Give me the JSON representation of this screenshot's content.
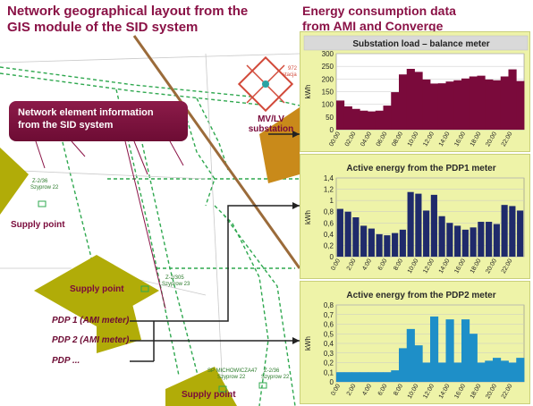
{
  "header": {
    "left_title_line1": "Network geographical layout from the",
    "left_title_line2": "GIS module of the SID system",
    "right_title_line1": "Energy consumption data",
    "right_title_line2": "from AMI and Converge"
  },
  "map": {
    "callout_line1": "Network element information",
    "callout_line2": "from the SID system",
    "substation_label_line1": "MV/LV",
    "substation_label_line2": "substation",
    "supply_point_labels": [
      "Supply point",
      "Supply point",
      "Supply point"
    ],
    "pdp_labels": [
      "PDP 1 (AMI meter)",
      "PDP 2 (AMI meter)",
      "PDP ..."
    ],
    "small_labels": [
      "Z-2/36",
      "Szyprow 22",
      "Z-2/305",
      "Szyprow 23",
      "SP MICHOWICZA47",
      "Szyprow 22",
      "Z-2/36",
      "Szyprow 22",
      "972",
      "stacja"
    ],
    "colors": {
      "olive": "#b1ac08",
      "maroon": "#7a0a3b",
      "green_line": "#2fa84f",
      "brown_road": "#9b6b3a"
    }
  },
  "chart_data": [
    {
      "type": "area",
      "title": "Substation load – balance meter",
      "ylabel": "kWh",
      "ylim": [
        0,
        300
      ],
      "yticks": [
        0,
        50,
        100,
        150,
        200,
        250,
        300
      ],
      "xticks": [
        "00:00",
        "02:00",
        "04:00",
        "06:00",
        "08:00",
        "10:00",
        "12:00",
        "14:00",
        "16:00",
        "18:00",
        "20:00",
        "22:00"
      ],
      "values": [
        115,
        92,
        82,
        75,
        72,
        75,
        95,
        148,
        218,
        240,
        228,
        198,
        182,
        183,
        190,
        195,
        202,
        210,
        213,
        198,
        195,
        210,
        238,
        192
      ],
      "color": "#7a0a3b"
    },
    {
      "type": "bar",
      "title": "Active energy from the PDP1 meter",
      "ylabel": "kWh",
      "ylim": [
        0,
        1.4
      ],
      "yticks": [
        "0",
        "0,2",
        "0,4",
        "0,6",
        "0,8",
        "1",
        "1,2",
        "1,4"
      ],
      "xticks": [
        "0:00",
        "2:00",
        "4:00",
        "6:00",
        "8:00",
        "10:00",
        "12:00",
        "14:00",
        "16:00",
        "18:00",
        "20:00",
        "22:00"
      ],
      "values": [
        0.85,
        0.8,
        0.7,
        0.55,
        0.5,
        0.4,
        0.38,
        0.42,
        0.48,
        1.15,
        1.12,
        0.82,
        1.1,
        0.72,
        0.6,
        0.55,
        0.48,
        0.52,
        0.62,
        0.62,
        0.58,
        0.92,
        0.9,
        0.82
      ],
      "color": "#1f2a6b"
    },
    {
      "type": "area",
      "title": "Active energy from the PDP2 meter",
      "ylabel": "kWh",
      "ylim": [
        0,
        0.8
      ],
      "yticks": [
        "0",
        "0,1",
        "0,2",
        "0,3",
        "0,4",
        "0,5",
        "0,6",
        "0,7",
        "0,8"
      ],
      "xticks": [
        "0:00",
        "2:00",
        "4:00",
        "6:00",
        "8:00",
        "10:00",
        "12:00",
        "14:00",
        "16:00",
        "18:00",
        "20:00",
        "22:00"
      ],
      "values": [
        0.1,
        0.1,
        0.1,
        0.1,
        0.1,
        0.1,
        0.1,
        0.12,
        0.35,
        0.55,
        0.38,
        0.2,
        0.68,
        0.2,
        0.65,
        0.2,
        0.65,
        0.5,
        0.2,
        0.22,
        0.25,
        0.22,
        0.2,
        0.25
      ],
      "color": "#1e8fc8"
    }
  ]
}
